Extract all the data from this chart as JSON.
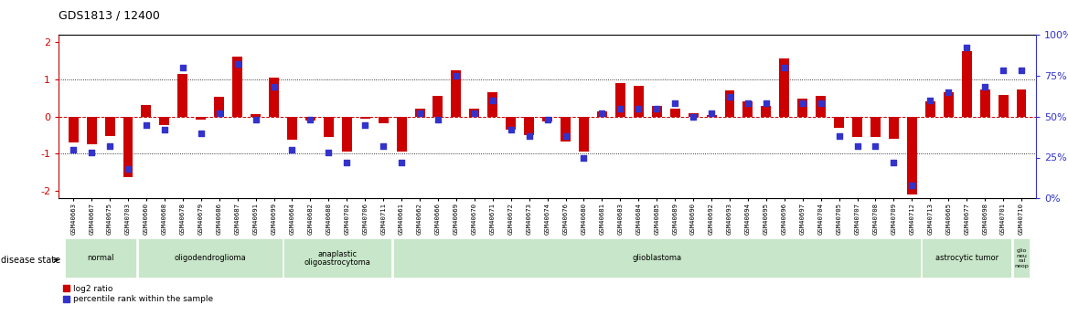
{
  "title": "GDS1813 / 12400",
  "samples": [
    "GSM40663",
    "GSM40667",
    "GSM40675",
    "GSM40703",
    "GSM40660",
    "GSM40668",
    "GSM40678",
    "GSM40679",
    "GSM40686",
    "GSM40687",
    "GSM40691",
    "GSM40699",
    "GSM40664",
    "GSM40682",
    "GSM40688",
    "GSM40702",
    "GSM40706",
    "GSM40711",
    "GSM40661",
    "GSM40662",
    "GSM40666",
    "GSM40669",
    "GSM40670",
    "GSM40671",
    "GSM40672",
    "GSM40673",
    "GSM40674",
    "GSM40676",
    "GSM40680",
    "GSM40681",
    "GSM40683",
    "GSM40684",
    "GSM40685",
    "GSM40689",
    "GSM40690",
    "GSM40692",
    "GSM40693",
    "GSM40694",
    "GSM40695",
    "GSM40696",
    "GSM40697",
    "GSM40704",
    "GSM40705",
    "GSM40707",
    "GSM40708",
    "GSM40709",
    "GSM40712",
    "GSM40713",
    "GSM40665",
    "GSM40677",
    "GSM40698",
    "GSM40701",
    "GSM40710"
  ],
  "log2_ratio": [
    -0.7,
    -0.75,
    -0.52,
    -1.62,
    0.3,
    -0.22,
    1.15,
    -0.08,
    0.52,
    1.6,
    0.07,
    1.05,
    -0.62,
    -0.1,
    -0.55,
    -0.95,
    -0.05,
    -0.18,
    -0.95,
    0.22,
    0.55,
    1.25,
    0.22,
    0.65,
    -0.35,
    -0.5,
    -0.12,
    -0.68,
    -0.95,
    0.15,
    0.9,
    0.82,
    0.28,
    0.22,
    0.1,
    0.05,
    0.7,
    0.42,
    0.28,
    1.55,
    0.48,
    0.55,
    -0.3,
    -0.55,
    -0.55,
    -0.6,
    -2.1,
    0.4,
    0.65,
    1.75,
    0.72,
    0.58,
    0.72
  ],
  "percentile": [
    30,
    28,
    32,
    18,
    45,
    42,
    80,
    40,
    52,
    82,
    48,
    68,
    30,
    48,
    28,
    22,
    45,
    32,
    22,
    52,
    48,
    75,
    52,
    60,
    42,
    38,
    48,
    38,
    25,
    52,
    55,
    55,
    55,
    58,
    50,
    52,
    62,
    58,
    58,
    80,
    58,
    58,
    38,
    32,
    32,
    22,
    8,
    60,
    65,
    92,
    68,
    78,
    78
  ],
  "disease_groups": [
    {
      "label": "normal",
      "start": 0,
      "end": 3
    },
    {
      "label": "oligodendroglioma",
      "start": 4,
      "end": 11
    },
    {
      "label": "anaplastic\noligoastrocytoma",
      "start": 12,
      "end": 17
    },
    {
      "label": "glioblastoma",
      "start": 18,
      "end": 46
    },
    {
      "label": "astrocytic tumor",
      "start": 47,
      "end": 51
    },
    {
      "label": "glio\nneu\nral\nneop",
      "start": 52,
      "end": 52
    }
  ],
  "group_color": "#c8e6c9",
  "bar_color": "#cc0000",
  "dot_color": "#3333cc",
  "ylim_left": [
    -2.2,
    2.2
  ],
  "ylim_right": [
    -2.2,
    2.2
  ],
  "yticks_left": [
    -2,
    -1,
    0,
    1,
    2
  ],
  "yticks_right_vals": [
    0,
    25,
    50,
    75,
    100
  ],
  "yticks_right_pos": [
    -2.2,
    -1.1,
    0.0,
    1.1,
    2.2
  ],
  "legend_labels": [
    "log2 ratio",
    "percentile rank within the sample"
  ],
  "bg_color": "#ffffff",
  "grid_color": "#000000"
}
